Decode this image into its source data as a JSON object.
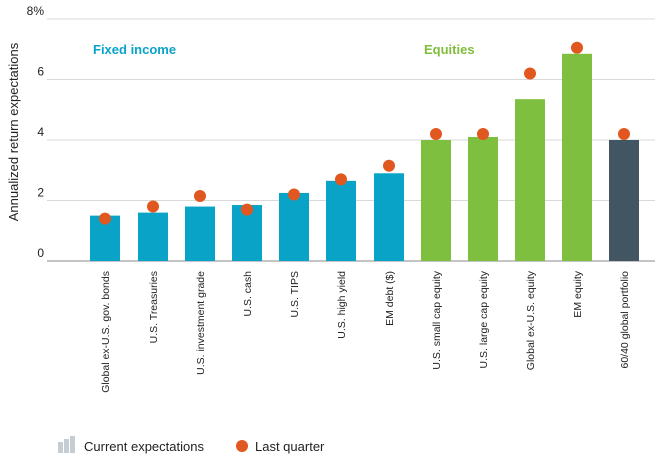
{
  "chart_data": {
    "type": "bar",
    "ylabel": "Annualized return expectations",
    "y_ticks": [
      "0",
      "2",
      "4",
      "6",
      "8%"
    ],
    "ylim": [
      0,
      8
    ],
    "grid": true,
    "categories": [
      "Global ex-U.S. gov. bonds",
      "U.S. Treasuries",
      "U.S. investment grade",
      "U.S. cash",
      "U.S. TIPS",
      "U.S. high yield",
      "EM debt ($)",
      "U.S. small cap equity",
      "U.S. large cap equity",
      "Global ex-U.S. equity",
      "EM  equity",
      "60/40 global portfolio"
    ],
    "series": [
      {
        "name": "Current expectations",
        "values": [
          1.5,
          1.6,
          1.8,
          1.85,
          2.25,
          2.65,
          2.9,
          4.0,
          4.1,
          5.35,
          6.85,
          4.0
        ]
      },
      {
        "name": "Last quarter",
        "values": [
          1.4,
          1.8,
          2.15,
          1.7,
          2.2,
          2.7,
          3.15,
          4.2,
          4.2,
          6.2,
          7.05,
          4.2
        ]
      }
    ],
    "group_labels": [
      {
        "label": "Fixed income",
        "color": "#0aa3c8"
      },
      {
        "label": "Equities",
        "color": "#82bc3c"
      }
    ],
    "bar_colors": [
      "#0aa3c8",
      "#0aa3c8",
      "#0aa3c8",
      "#0aa3c8",
      "#0aa3c8",
      "#0aa3c8",
      "#0aa3c8",
      "#7fbf3f",
      "#7fbf3f",
      "#7fbf3f",
      "#7fbf3f",
      "#425563"
    ],
    "dot_color": "#e0571f",
    "legend": {
      "position": "bottom-left",
      "bar_label": "Current expectations",
      "dot_label": "Last quarter",
      "bar_icon_color": "#c5cdd3"
    }
  }
}
